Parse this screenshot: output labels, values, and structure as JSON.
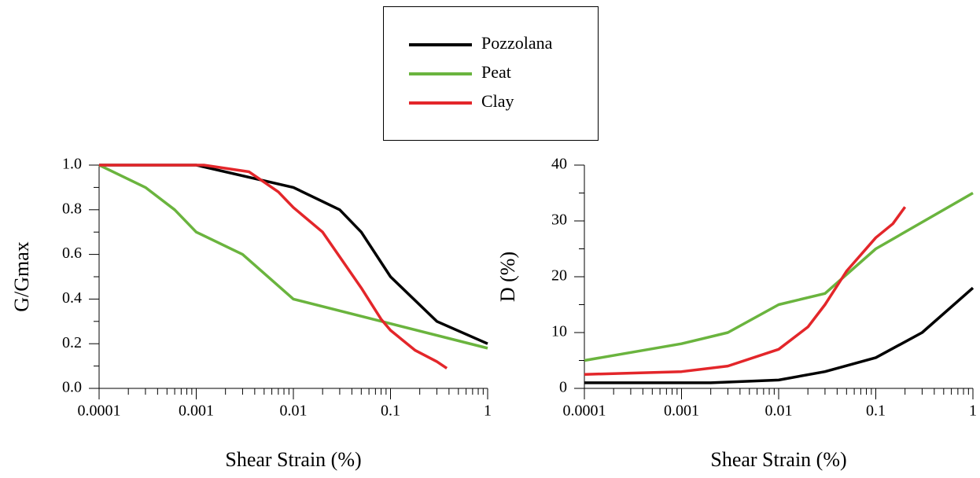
{
  "chart_data": [
    {
      "type": "line",
      "x_label": "Shear Strain (%)",
      "y_label": "G/Gmax",
      "log_x": true,
      "xlim": [
        0.0001,
        1
      ],
      "xticks": [
        0.0001,
        0.001,
        0.01,
        0.1,
        1
      ],
      "ylim": [
        0,
        1
      ],
      "yticks": [
        {
          "value": 0,
          "label": "0.0"
        },
        {
          "value": 0.2,
          "label": "0.2"
        },
        {
          "value": 0.4,
          "label": "0.4"
        },
        {
          "value": 0.6,
          "label": "0.6"
        },
        {
          "value": 0.8,
          "label": "0.8"
        },
        {
          "value": 1,
          "label": "1.0"
        }
      ],
      "series": [
        {
          "name": "Pozzolana",
          "color": "#000000",
          "x": [
            0.0001,
            0.001,
            0.01,
            0.03,
            0.05,
            0.1,
            0.3,
            1
          ],
          "values": [
            1,
            1,
            0.9,
            0.8,
            0.7,
            0.5,
            0.3,
            0.2
          ]
        },
        {
          "name": "Peat",
          "color": "#6ab43e",
          "x": [
            0.0001,
            0.0003,
            0.0006,
            0.001,
            0.003,
            0.01,
            1
          ],
          "values": [
            1,
            0.9,
            0.8,
            0.7,
            0.6,
            0.4,
            0.18
          ]
        },
        {
          "name": "Clay",
          "color": "#e3262a",
          "x": [
            0.0001,
            0.0012,
            0.0035,
            0.007,
            0.01,
            0.02,
            0.05,
            0.08,
            0.1,
            0.18,
            0.3,
            0.38
          ],
          "values": [
            1,
            1,
            0.97,
            0.88,
            0.81,
            0.7,
            0.45,
            0.31,
            0.26,
            0.17,
            0.12,
            0.09
          ]
        }
      ]
    },
    {
      "type": "line",
      "x_label": "Shear Strain (%)",
      "y_label": "D (%)",
      "log_x": true,
      "xlim": [
        0.0001,
        1
      ],
      "xticks": [
        0.0001,
        0.001,
        0.01,
        0.1,
        1
      ],
      "ylim": [
        0,
        40
      ],
      "yticks": [
        0,
        10,
        20,
        30,
        40
      ],
      "series": [
        {
          "name": "Pozzolana",
          "color": "#000000",
          "x": [
            0.0001,
            0.002,
            0.01,
            0.03,
            0.1,
            0.3,
            1
          ],
          "values": [
            1,
            1,
            1.5,
            3,
            5.5,
            10,
            18
          ]
        },
        {
          "name": "Peat",
          "color": "#6ab43e",
          "x": [
            0.0001,
            0.001,
            0.003,
            0.01,
            0.03,
            0.1,
            1
          ],
          "values": [
            5,
            8,
            10,
            15,
            17,
            25,
            35
          ]
        },
        {
          "name": "Clay",
          "color": "#e3262a",
          "x": [
            0.0001,
            0.001,
            0.003,
            0.01,
            0.02,
            0.03,
            0.05,
            0.1,
            0.15,
            0.2
          ],
          "values": [
            2.5,
            3,
            4,
            7,
            11,
            15,
            21,
            27,
            29.5,
            32.5
          ]
        }
      ]
    }
  ]
}
